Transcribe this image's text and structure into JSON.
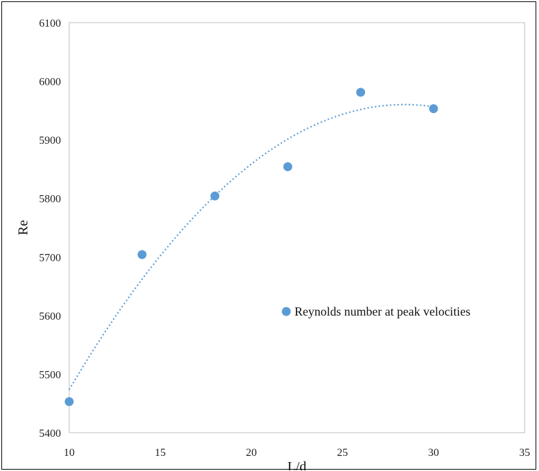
{
  "chart_data": {
    "type": "scatter",
    "title": "",
    "xlabel": "L/d",
    "ylabel": "Re",
    "xlim": [
      10,
      35
    ],
    "ylim": [
      5400,
      6100
    ],
    "xticks": [
      "10",
      "15",
      "20",
      "25",
      "30",
      "35"
    ],
    "yticks": [
      "5400",
      "5500",
      "5600",
      "5700",
      "5800",
      "5900",
      "6000",
      "6100"
    ],
    "grid": false,
    "legend_position": "right",
    "series": [
      {
        "name": "Reynolds number at peak velocities",
        "x": [
          10,
          14,
          18,
          22,
          26,
          30
        ],
        "y": [
          5453,
          5704,
          5804,
          5854,
          5981,
          5953
        ],
        "color": "#5b9bd5",
        "marker": "circle",
        "trendline": "polynomial (dotted)",
        "trendline_color": "#5b9bd5"
      }
    ]
  }
}
